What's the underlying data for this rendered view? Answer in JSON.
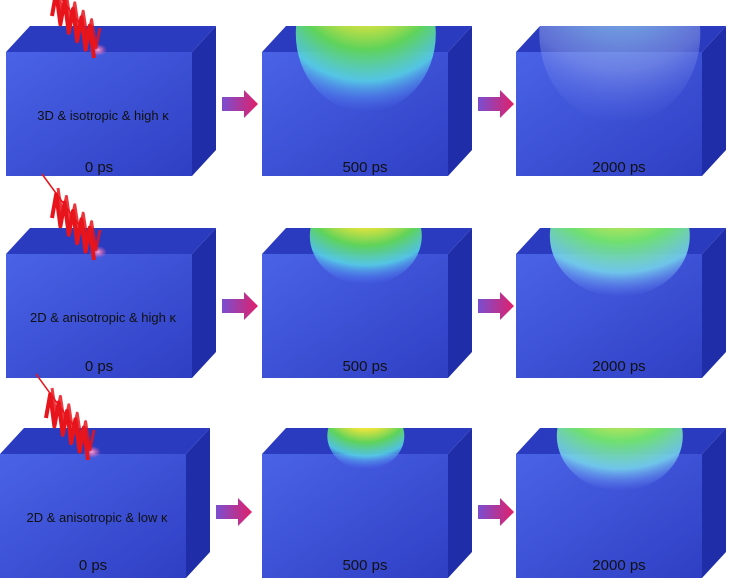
{
  "rows": [
    {
      "condition": "3D & isotropic & high κ",
      "times": [
        "0 ps",
        "500 ps",
        "2000 ps"
      ],
      "heat": [
        null,
        {
          "spread": 1.0,
          "intensity": 1.0
        },
        {
          "spread": 1.15,
          "intensity": 0.25
        }
      ]
    },
    {
      "condition": "2D & anisotropic & high κ",
      "times": [
        "0 ps",
        "500 ps",
        "2000 ps"
      ],
      "heat": [
        null,
        {
          "spread": 0.8,
          "intensity": 1.0
        },
        {
          "spread": 1.0,
          "intensity": 0.55
        }
      ]
    },
    {
      "condition": "2D & anisotropic & low κ",
      "times": [
        "0 ps",
        "500 ps",
        "2000 ps"
      ],
      "heat": [
        null,
        {
          "spread": 0.55,
          "intensity": 1.0
        },
        {
          "spread": 0.9,
          "intensity": 0.85
        }
      ]
    }
  ],
  "colors": {
    "block_front": "#3a4fd6",
    "block_top": "#2b3bbf",
    "block_side": "#1f2ea8",
    "arrow": "#c2185b",
    "laser": "#e8141c",
    "spot": "#ff5ca8"
  }
}
